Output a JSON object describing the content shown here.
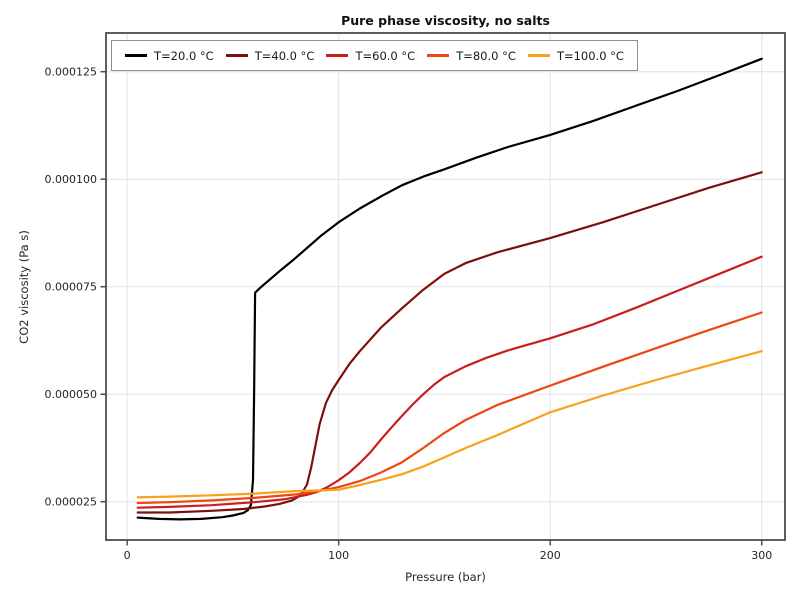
{
  "figure": {
    "background": "#ffffff"
  },
  "chart_data": {
    "type": "line",
    "title": "Pure phase viscosity, no salts",
    "xlabel": "Pressure (bar)",
    "ylabel": "CO2 viscosity (Pa s)",
    "xlim": [
      -10,
      311
    ],
    "ylim": [
      1.61e-05,
      0.000134
    ],
    "grid": true,
    "legend_position": "upper left, horizontal",
    "xticks": {
      "values": [
        0,
        100,
        200,
        300
      ],
      "labels": [
        "0",
        "100",
        "200",
        "300"
      ]
    },
    "yticks": {
      "values": [
        2.5e-05,
        5e-05,
        7.5e-05,
        0.0001,
        0.000125
      ],
      "labels": [
        "0.000025",
        "0.000050",
        "0.000075",
        "0.000100",
        "0.000125"
      ]
    },
    "styles": {
      "grid_color": "#e3e3e3",
      "spine_color": "#4d4d4d",
      "text_color": "#262626",
      "legend_border_color": "#8f8f8f"
    },
    "series": [
      {
        "name": "T=20.0 °C",
        "color": "#000000",
        "points": [
          [
            5,
            2.13e-05
          ],
          [
            15,
            2.1e-05
          ],
          [
            25,
            2.09e-05
          ],
          [
            35,
            2.1e-05
          ],
          [
            45,
            2.14e-05
          ],
          [
            50,
            2.18e-05
          ],
          [
            55,
            2.24e-05
          ],
          [
            57,
            2.3e-05
          ],
          [
            58.5,
            2.42e-05
          ],
          [
            59.5,
            3e-05
          ],
          [
            60,
            5e-05
          ],
          [
            60.5,
            7.36e-05
          ],
          [
            63,
            7.48e-05
          ],
          [
            67,
            7.65e-05
          ],
          [
            72,
            7.86e-05
          ],
          [
            78,
            8.1e-05
          ],
          [
            85,
            8.4e-05
          ],
          [
            92,
            8.7e-05
          ],
          [
            100,
            9e-05
          ],
          [
            110,
            9.32e-05
          ],
          [
            120,
            9.6e-05
          ],
          [
            130,
            9.86e-05
          ],
          [
            140,
            0.0001006
          ],
          [
            150,
            0.0001023
          ],
          [
            165,
            0.000105
          ],
          [
            180,
            0.0001075
          ],
          [
            200,
            0.0001103
          ],
          [
            220,
            0.0001135
          ],
          [
            240,
            0.000117
          ],
          [
            260,
            0.0001205
          ],
          [
            280,
            0.0001242
          ],
          [
            300,
            0.000128
          ]
        ]
      },
      {
        "name": "T=40.0 °C",
        "color": "#7d0f0f",
        "points": [
          [
            5,
            2.25e-05
          ],
          [
            20,
            2.25e-05
          ],
          [
            40,
            2.29e-05
          ],
          [
            55,
            2.33e-05
          ],
          [
            65,
            2.39e-05
          ],
          [
            72,
            2.45e-05
          ],
          [
            78,
            2.53e-05
          ],
          [
            82,
            2.65e-05
          ],
          [
            85,
            2.9e-05
          ],
          [
            87,
            3.3e-05
          ],
          [
            89,
            3.8e-05
          ],
          [
            91,
            4.3e-05
          ],
          [
            94,
            4.8e-05
          ],
          [
            97,
            5.1e-05
          ],
          [
            100,
            5.33e-05
          ],
          [
            105,
            5.7e-05
          ],
          [
            110,
            6e-05
          ],
          [
            120,
            6.55e-05
          ],
          [
            130,
            7e-05
          ],
          [
            140,
            7.43e-05
          ],
          [
            150,
            7.8e-05
          ],
          [
            160,
            8.05e-05
          ],
          [
            175,
            8.3e-05
          ],
          [
            200,
            8.63e-05
          ],
          [
            225,
            9e-05
          ],
          [
            250,
            9.4e-05
          ],
          [
            275,
            9.8e-05
          ],
          [
            300,
            0.0001016
          ]
        ]
      },
      {
        "name": "T=60.0 °C",
        "color": "#c81e1e",
        "points": [
          [
            5,
            2.36e-05
          ],
          [
            20,
            2.38e-05
          ],
          [
            40,
            2.42e-05
          ],
          [
            60,
            2.49e-05
          ],
          [
            75,
            2.56e-05
          ],
          [
            85,
            2.66e-05
          ],
          [
            90,
            2.73e-05
          ],
          [
            95,
            2.85e-05
          ],
          [
            100,
            3e-05
          ],
          [
            105,
            3.18e-05
          ],
          [
            110,
            3.4e-05
          ],
          [
            115,
            3.65e-05
          ],
          [
            120,
            3.95e-05
          ],
          [
            125,
            4.23e-05
          ],
          [
            130,
            4.5e-05
          ],
          [
            135,
            4.76e-05
          ],
          [
            140,
            5e-05
          ],
          [
            145,
            5.22e-05
          ],
          [
            150,
            5.4e-05
          ],
          [
            160,
            5.65e-05
          ],
          [
            170,
            5.85e-05
          ],
          [
            180,
            6.02e-05
          ],
          [
            190,
            6.16e-05
          ],
          [
            200,
            6.3e-05
          ],
          [
            220,
            6.62e-05
          ],
          [
            240,
            7e-05
          ],
          [
            260,
            7.4e-05
          ],
          [
            280,
            7.8e-05
          ],
          [
            300,
            8.2e-05
          ]
        ]
      },
      {
        "name": "T=80.0 °C",
        "color": "#ef4511",
        "points": [
          [
            5,
            2.47e-05
          ],
          [
            20,
            2.49e-05
          ],
          [
            40,
            2.53e-05
          ],
          [
            60,
            2.59e-05
          ],
          [
            80,
            2.67e-05
          ],
          [
            90,
            2.74e-05
          ],
          [
            100,
            2.84e-05
          ],
          [
            110,
            2.98e-05
          ],
          [
            120,
            3.18e-05
          ],
          [
            130,
            3.42e-05
          ],
          [
            140,
            3.75e-05
          ],
          [
            150,
            4.1e-05
          ],
          [
            160,
            4.4e-05
          ],
          [
            175,
            4.75e-05
          ],
          [
            200,
            5.2e-05
          ],
          [
            225,
            5.64e-05
          ],
          [
            250,
            6.07e-05
          ],
          [
            275,
            6.49e-05
          ],
          [
            300,
            6.9e-05
          ]
        ]
      },
      {
        "name": "T=100.0 °C",
        "color": "#f7a11c",
        "points": [
          [
            5,
            2.6e-05
          ],
          [
            20,
            2.62e-05
          ],
          [
            40,
            2.65e-05
          ],
          [
            60,
            2.69e-05
          ],
          [
            80,
            2.75e-05
          ],
          [
            90,
            2.76e-05
          ],
          [
            95,
            2.77e-05
          ],
          [
            100,
            2.78e-05
          ],
          [
            110,
            2.89e-05
          ],
          [
            120,
            3.01e-05
          ],
          [
            130,
            3.14e-05
          ],
          [
            140,
            3.32e-05
          ],
          [
            150,
            3.53e-05
          ],
          [
            160,
            3.75e-05
          ],
          [
            175,
            4.05e-05
          ],
          [
            200,
            4.58e-05
          ],
          [
            225,
            4.97e-05
          ],
          [
            250,
            5.33e-05
          ],
          [
            275,
            5.67e-05
          ],
          [
            300,
            6e-05
          ]
        ]
      }
    ]
  }
}
